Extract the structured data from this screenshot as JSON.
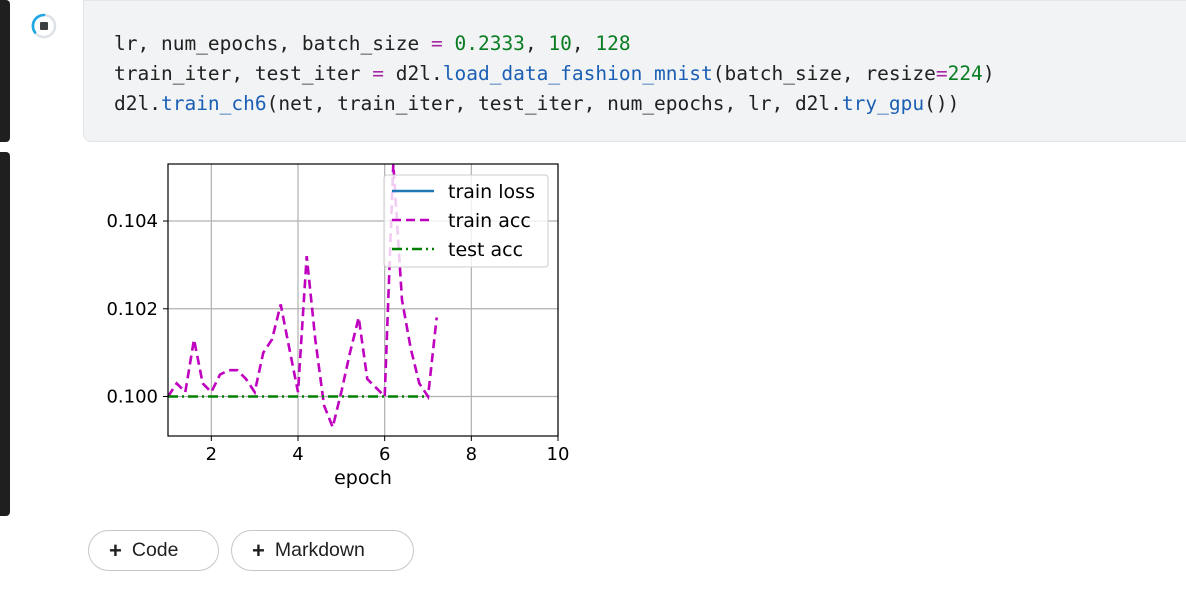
{
  "code_cell": {
    "lines": [
      [
        {
          "t": "lr, num_epochs, batch_size "
        },
        {
          "t": "=",
          "c": "op"
        },
        {
          "t": " "
        },
        {
          "t": "0.2333",
          "c": "num"
        },
        {
          "t": ", "
        },
        {
          "t": "10",
          "c": "num"
        },
        {
          "t": ", "
        },
        {
          "t": "128",
          "c": "num"
        }
      ],
      [
        {
          "t": "train_iter, test_iter "
        },
        {
          "t": "=",
          "c": "op"
        },
        {
          "t": " d2l."
        },
        {
          "t": "load_data_fashion_mnist",
          "c": "fn"
        },
        {
          "t": "(batch_size, resize"
        },
        {
          "t": "=",
          "c": "op"
        },
        {
          "t": "224",
          "c": "num"
        },
        {
          "t": ")"
        }
      ],
      [
        {
          "t": "d2l."
        },
        {
          "t": "train_ch6",
          "c": "fn"
        },
        {
          "t": "(net, train_iter, test_iter, num_epochs, lr, d2l."
        },
        {
          "t": "try_gpu",
          "c": "fn"
        },
        {
          "t": "())"
        }
      ]
    ]
  },
  "toolbar": {
    "add_code_label": "Code",
    "add_markdown_label": "Markdown",
    "plus_symbol": "+"
  },
  "colors": {
    "train_loss": "#1f77b4",
    "train_acc": "#bf00bf",
    "test_acc": "#008000"
  },
  "chart_data": {
    "type": "line",
    "title": "",
    "xlabel": "epoch",
    "ylabel": "",
    "xlim": [
      1,
      10
    ],
    "ylim": [
      0.0991,
      0.1053
    ],
    "xticks": [
      2,
      4,
      6,
      8,
      10
    ],
    "yticks": [
      0.1,
      0.102,
      0.104
    ],
    "ytick_labels": [
      "0.100",
      "0.102",
      "0.104"
    ],
    "grid": true,
    "legend_position": "top-right",
    "series": [
      {
        "name": "train loss",
        "style": "solid",
        "x": [],
        "y": []
      },
      {
        "name": "train acc",
        "style": "dashed",
        "x": [
          1.0,
          1.2,
          1.4,
          1.6,
          1.8,
          2.0,
          2.2,
          2.4,
          2.6,
          2.8,
          3.0,
          3.2,
          3.4,
          3.6,
          3.8,
          4.0,
          4.2,
          4.4,
          4.6,
          4.8,
          5.0,
          5.2,
          5.4,
          5.6,
          5.8,
          6.0,
          6.2,
          6.4,
          6.6,
          6.8,
          7.0,
          7.2
        ],
        "y": [
          0.1,
          0.1003,
          0.1001,
          0.1013,
          0.1003,
          0.1001,
          0.1005,
          0.1006,
          0.1006,
          0.1004,
          0.1001,
          0.101,
          0.1013,
          0.1021,
          0.1011,
          0.1001,
          0.1032,
          0.1013,
          0.0998,
          0.0993,
          0.1001,
          0.101,
          0.1018,
          0.1004,
          0.1002,
          0.1,
          0.1053,
          0.1022,
          0.1011,
          0.1003,
          0.1,
          0.1018
        ]
      },
      {
        "name": "test acc",
        "style": "dashdot",
        "x": [
          1.0,
          2.0,
          3.0,
          4.0,
          5.0,
          6.0,
          7.0
        ],
        "y": [
          0.1,
          0.1,
          0.1,
          0.1,
          0.1,
          0.1,
          0.1
        ]
      }
    ]
  }
}
